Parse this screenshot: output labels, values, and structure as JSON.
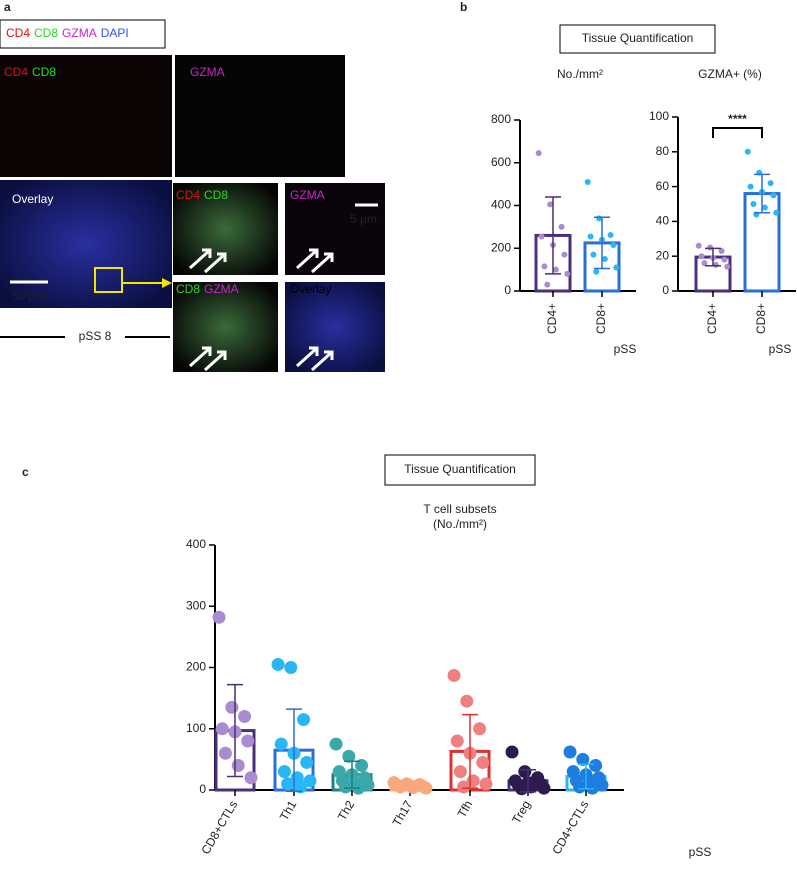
{
  "panel_labels": [
    "a",
    "b",
    "c"
  ],
  "panel_a": {
    "legend": [
      "CD4",
      "CD8",
      "GZMA",
      "DAPI"
    ],
    "image_labels": [
      [
        "CD4",
        "CD8"
      ],
      [
        "GZMA"
      ],
      [
        "Overlay"
      ],
      [
        "CD4",
        "CD8"
      ],
      [
        "GZMA"
      ],
      [
        "CD8",
        "GZMA"
      ],
      [
        "Overlay"
      ]
    ],
    "scale_bars": [
      "50 µm",
      "5 µm"
    ],
    "sample": "pSS 8"
  },
  "chart_data": [
    {
      "type": "bar_scatter",
      "box_title": "Tissue Quantification",
      "title": "No./mm²",
      "x_label": "pSS",
      "categories": [
        "CD4+",
        "CD8+"
      ],
      "values": [
        260,
        225
      ],
      "errors": [
        180,
        120
      ],
      "points": [
        [
          645,
          405,
          300,
          255,
          215,
          170,
          115,
          100,
          80,
          30
        ],
        [
          510,
          340,
          262,
          255,
          240,
          215,
          170,
          150,
          110,
          90
        ]
      ],
      "bar_colors": [
        "#4a2f7a",
        "#2a6fd6"
      ],
      "point_colors": [
        "#a98bd0",
        "#29b6f6"
      ],
      "ylim": [
        0,
        800
      ],
      "yticks": [
        0,
        200,
        400,
        600,
        800
      ]
    },
    {
      "type": "bar_scatter",
      "title": "GZMA+ (%)",
      "x_label": "pSS",
      "annotation": "****",
      "categories": [
        "CD4+",
        "CD8+"
      ],
      "values": [
        19.5,
        56
      ],
      "errors": [
        5,
        11
      ],
      "points": [
        [
          26,
          25,
          23,
          20,
          19,
          18,
          16,
          15,
          14
        ],
        [
          80,
          68,
          62,
          60,
          57,
          55,
          50,
          48,
          45,
          44
        ]
      ],
      "bar_colors": [
        "#4a2f7a",
        "#2a6fd6"
      ],
      "point_colors": [
        "#a98bd0",
        "#29b6f6"
      ],
      "ylim": [
        0,
        100
      ],
      "yticks": [
        0,
        20,
        40,
        60,
        80,
        100
      ]
    },
    {
      "type": "bar_scatter",
      "box_title": "Tissue Quantification",
      "title": "T cell subsets",
      "subtitle": "(No./mm²)",
      "x_label": "pSS",
      "categories": [
        "CD8+CTLs",
        "Th1",
        "Th2",
        "Th17",
        "Tfh",
        "Treg",
        "CD4+CTLs"
      ],
      "values": [
        97,
        65,
        25,
        8,
        63,
        15,
        22
      ],
      "errors": [
        75,
        67,
        22,
        3,
        60,
        18,
        20
      ],
      "points": [
        [
          282,
          135,
          120,
          100,
          95,
          80,
          60,
          40,
          20
        ],
        [
          205,
          200,
          115,
          75,
          60,
          45,
          30,
          20,
          15,
          10,
          5
        ],
        [
          75,
          55,
          40,
          30,
          25,
          20,
          15,
          10,
          8,
          5,
          3
        ],
        [
          12,
          10,
          9,
          8,
          7,
          6,
          5,
          4,
          3
        ],
        [
          187,
          145,
          100,
          80,
          60,
          45,
          30,
          15,
          10,
          5
        ],
        [
          62,
          30,
          20,
          15,
          12,
          10,
          8,
          5,
          3,
          2
        ],
        [
          62,
          50,
          40,
          30,
          25,
          20,
          15,
          10,
          8,
          5,
          3
        ]
      ],
      "bar_colors": [
        "#4a2f7a",
        "#2a6fd6",
        "#1f7f80",
        "#f9a87c",
        "#e03030",
        "#4a2f7a",
        "#29b6f6"
      ],
      "point_colors": [
        "#a98bd0",
        "#29b6f6",
        "#3aa8a8",
        "#f9a87c",
        "#f08080",
        "#2d1b4e",
        "#1e7de0"
      ],
      "ylim": [
        0,
        400
      ],
      "yticks": [
        0,
        100,
        200,
        300,
        400
      ]
    }
  ]
}
